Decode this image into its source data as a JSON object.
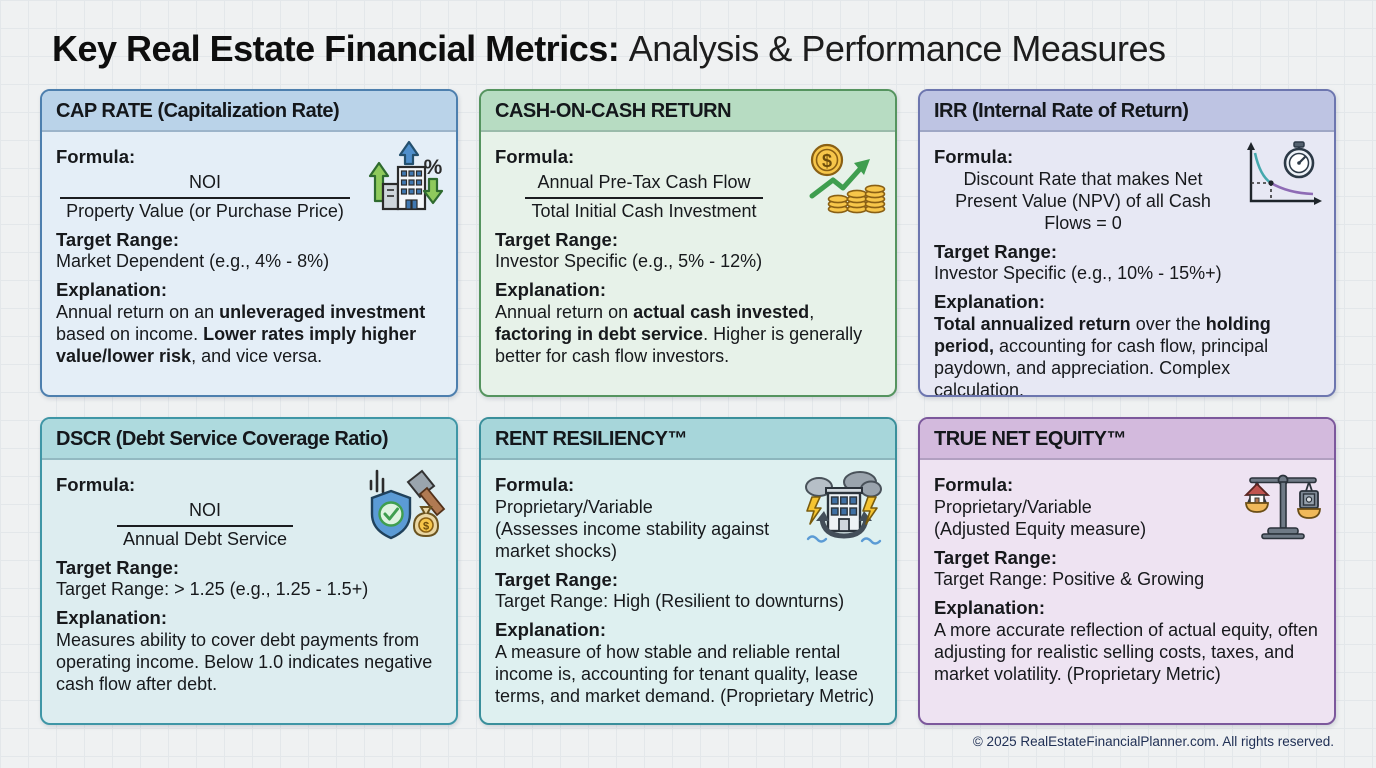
{
  "page": {
    "title_bold": "Key Real Estate Financial Metrics:",
    "title_regular": "Analysis & Performance Measures",
    "footer": "© 2025 RealEstateFinancialPlanner.com. All rights reserved."
  },
  "labels": {
    "formula": "Formula:",
    "target_range": "Target Range:",
    "explanation": "Explanation:"
  },
  "cards": [
    {
      "title": "CAP RATE (Capitalization Rate)",
      "icon": "building-trend-percent-icon",
      "colors": {
        "header": "#bad3e9",
        "body": "#e4eef7",
        "border": "#4d7fae"
      },
      "formula": {
        "type": "fraction",
        "numerator": "NOI",
        "denominator": "Property Value (or Purchase Price)"
      },
      "target_range": "Market Dependent (e.g., 4% - 8%)",
      "explanation": [
        {
          "t": "Annual return on an ",
          "b": false
        },
        {
          "t": "unleveraged investment",
          "b": true
        },
        {
          "t": " based on income. ",
          "b": false
        },
        {
          "t": "Lower rates imply higher value/lower risk",
          "b": true
        },
        {
          "t": ", and vice versa.",
          "b": false
        }
      ]
    },
    {
      "title": "CASH-ON-CASH RETURN",
      "icon": "coins-growth-arrow-icon",
      "colors": {
        "header": "#b7dcc2",
        "body": "#e7f2e9",
        "border": "#55945f"
      },
      "formula": {
        "type": "fraction",
        "numerator": "Annual Pre-Tax Cash Flow",
        "denominator": "Total Initial Cash Investment"
      },
      "target_range": "Investor Specific (e.g., 5% - 12%)",
      "explanation": [
        {
          "t": "Annual return on ",
          "b": false
        },
        {
          "t": "actual cash invested",
          "b": true
        },
        {
          "t": ", ",
          "b": false
        },
        {
          "t": "factoring in debt service",
          "b": true
        },
        {
          "t": ". Higher is generally better for cash flow investors.",
          "b": false
        }
      ]
    },
    {
      "title": "IRR (Internal Rate of Return)",
      "icon": "npv-curve-stopwatch-icon",
      "colors": {
        "header": "#bec4e3",
        "body": "#e7e8f4",
        "border": "#6d76af"
      },
      "formula": {
        "type": "text",
        "line1": "Discount Rate that makes Net Present Value (NPV) of all Cash Flows = 0",
        "line2": ""
      },
      "target_range": "Investor Specific (e.g., 10% - 15%+)",
      "explanation": [
        {
          "t": "Total annualized return",
          "b": true
        },
        {
          "t": " over the ",
          "b": false
        },
        {
          "t": "holding period,",
          "b": true
        },
        {
          "t": " accounting for cash flow, principal paydown, and appreciation. Complex calculation.",
          "b": false
        }
      ]
    },
    {
      "title": "DSCR (Debt Service Coverage Ratio)",
      "icon": "shield-check-moneybag-hammer-icon",
      "colors": {
        "header": "#aedade",
        "body": "#ddedf0",
        "border": "#3f96a6"
      },
      "formula": {
        "type": "fraction",
        "numerator": "NOI",
        "denominator": "Annual Debt Service"
      },
      "target_range": "Target Range: > 1.25 (e.g., 1.25 - 1.5+)",
      "explanation": [
        {
          "t": "Measures ability to cover debt payments from operating income. Below 1.0 indicates negative cash flow after debt.",
          "b": false
        }
      ]
    },
    {
      "title": "RENT RESILIENCY™",
      "icon": "storm-building-anchor-icon",
      "colors": {
        "header": "#a7d6da",
        "body": "#def0f0",
        "border": "#3a8f9b"
      },
      "formula": {
        "type": "text",
        "line1": "Proprietary/Variable",
        "line2": "(Assesses income stability against market shocks)"
      },
      "target_range": "Target Range: High (Resilient to downturns)",
      "explanation": [
        {
          "t": "A measure of how stable and reliable rental income is, accounting for tenant quality, lease terms, and market demand. (Proprietary Metric)",
          "b": false
        }
      ]
    },
    {
      "title": "TRUE NET EQUITY™",
      "icon": "balance-scale-house-safe-icon",
      "colors": {
        "header": "#d3badd",
        "body": "#eee3f2",
        "border": "#7c589c"
      },
      "formula": {
        "type": "text",
        "line1": "Proprietary/Variable",
        "line2": "(Adjusted Equity measure)"
      },
      "target_range": "Target Range: Positive & Growing",
      "explanation": [
        {
          "t": "A more accurate reflection of actual equity, often adjusting for realistic selling costs, taxes, and market volatility. (Proprietary Metric)",
          "b": false
        }
      ]
    }
  ]
}
